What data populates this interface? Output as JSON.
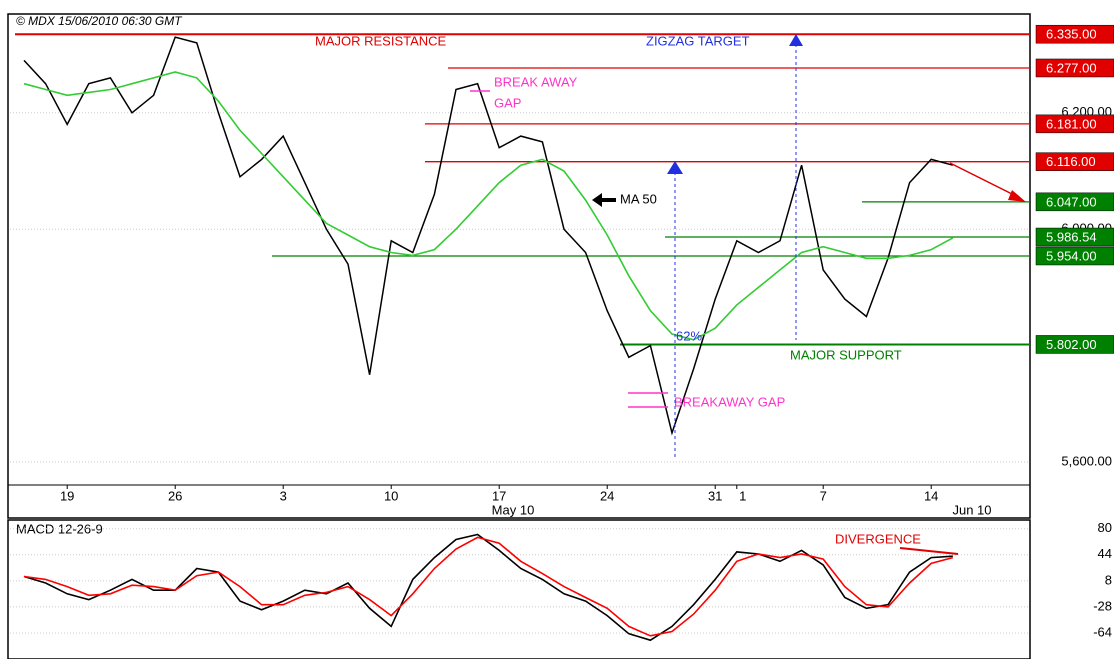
{
  "header": "© MDX 15/06/2010  06:30 GMT",
  "chart_data": [
    {
      "type": "line",
      "categories": [
        null,
        null,
        "19",
        null,
        null,
        null,
        null,
        "26",
        null,
        null,
        null,
        null,
        "3",
        null,
        null,
        null,
        null,
        "10",
        null,
        null,
        null,
        null,
        "17",
        null,
        null,
        null,
        null,
        "24",
        null,
        null,
        null,
        null,
        "31",
        "1",
        null,
        null,
        null,
        "7",
        null,
        null,
        null,
        null,
        "14",
        null
      ],
      "month_labels": [
        "May 10",
        "Jun 10"
      ],
      "series": [
        {
          "name": "Price",
          "color": "#000000",
          "values": [
            6290,
            6250,
            6180,
            6250,
            6260,
            6200,
            6230,
            6330,
            6320,
            6200,
            6090,
            6120,
            6160,
            6080,
            6000,
            5940,
            5750,
            5980,
            5960,
            6060,
            6240,
            6250,
            6140,
            6160,
            6150,
            6000,
            5960,
            5860,
            5780,
            5800,
            5650,
            5760,
            5880,
            5980,
            5960,
            5980,
            6110,
            5930,
            5880,
            5850,
            5950,
            6080,
            6120,
            6110
          ]
        },
        {
          "name": "MA 50",
          "color": "#33cc33",
          "values": [
            6250,
            6240,
            6230,
            6235,
            6240,
            6250,
            6260,
            6270,
            6260,
            6220,
            6170,
            6130,
            6090,
            6050,
            6010,
            5990,
            5970,
            5960,
            5955,
            5965,
            6000,
            6040,
            6080,
            6110,
            6120,
            6100,
            6050,
            5990,
            5920,
            5860,
            5820,
            5810,
            5830,
            5870,
            5900,
            5930,
            5960,
            5970,
            5960,
            5950,
            5950,
            5955,
            5965,
            5985
          ]
        }
      ],
      "levels": [
        {
          "value": 6335,
          "label": "6.335.00",
          "color": "#e00000"
        },
        {
          "value": 6277,
          "label": "6.277.00",
          "color": "#e00000"
        },
        {
          "value": 6181,
          "label": "6.181.00",
          "color": "#e00000"
        },
        {
          "value": 6116,
          "label": "6.116.00",
          "color": "#e00000"
        },
        {
          "value": 6047,
          "label": "6.047.00",
          "color": "#008000"
        },
        {
          "value": 5986.54,
          "label": "5.986.54",
          "color": "#008000"
        },
        {
          "value": 5954,
          "label": "5.954.00",
          "color": "#008000"
        },
        {
          "value": 5802,
          "label": "5.802.00",
          "color": "#008000"
        }
      ],
      "annotations": [
        "MAJOR RESISTANCE",
        "ZIGZAG TARGET",
        "BREAK AWAY",
        "GAP",
        "MA 50",
        "62%",
        "BREAKAWAY GAP",
        "MAJOR SUPPORT"
      ],
      "ylim": [
        5509,
        6368
      ],
      "yticks": [
        {
          "value": 5600,
          "label": "5,600.00"
        },
        {
          "value": 6000,
          "label": "6,000.00"
        },
        {
          "value": 6200,
          "label": "6,200.00"
        }
      ],
      "grid": true
    },
    {
      "type": "line",
      "title": "MACD 12-26-9",
      "annotations": [
        "DIVERGENCE"
      ],
      "series": [
        {
          "name": "MACD",
          "color": "#000000",
          "values": [
            14,
            5,
            -10,
            -18,
            -5,
            10,
            -5,
            -5,
            25,
            20,
            -20,
            -32,
            -20,
            -5,
            -10,
            5,
            -30,
            -55,
            10,
            40,
            65,
            72,
            50,
            25,
            10,
            -10,
            -20,
            -40,
            -65,
            -74,
            -55,
            -25,
            10,
            48,
            45,
            35,
            50,
            30,
            -15,
            -30,
            -25,
            20,
            40,
            42
          ]
        },
        {
          "name": "Signal",
          "color": "#ff0000",
          "values": [
            14,
            10,
            0,
            -12,
            -10,
            2,
            0,
            -5,
            15,
            20,
            0,
            -25,
            -25,
            -12,
            -8,
            0,
            -18,
            -40,
            -10,
            25,
            52,
            68,
            60,
            35,
            18,
            0,
            -15,
            -30,
            -55,
            -68,
            -62,
            -38,
            -5,
            35,
            45,
            40,
            45,
            38,
            0,
            -25,
            -28,
            5,
            32,
            40
          ]
        }
      ],
      "ylim": [
        -100,
        92
      ],
      "yticks": [
        80,
        44,
        8,
        -28,
        -64
      ],
      "grid": true
    }
  ]
}
